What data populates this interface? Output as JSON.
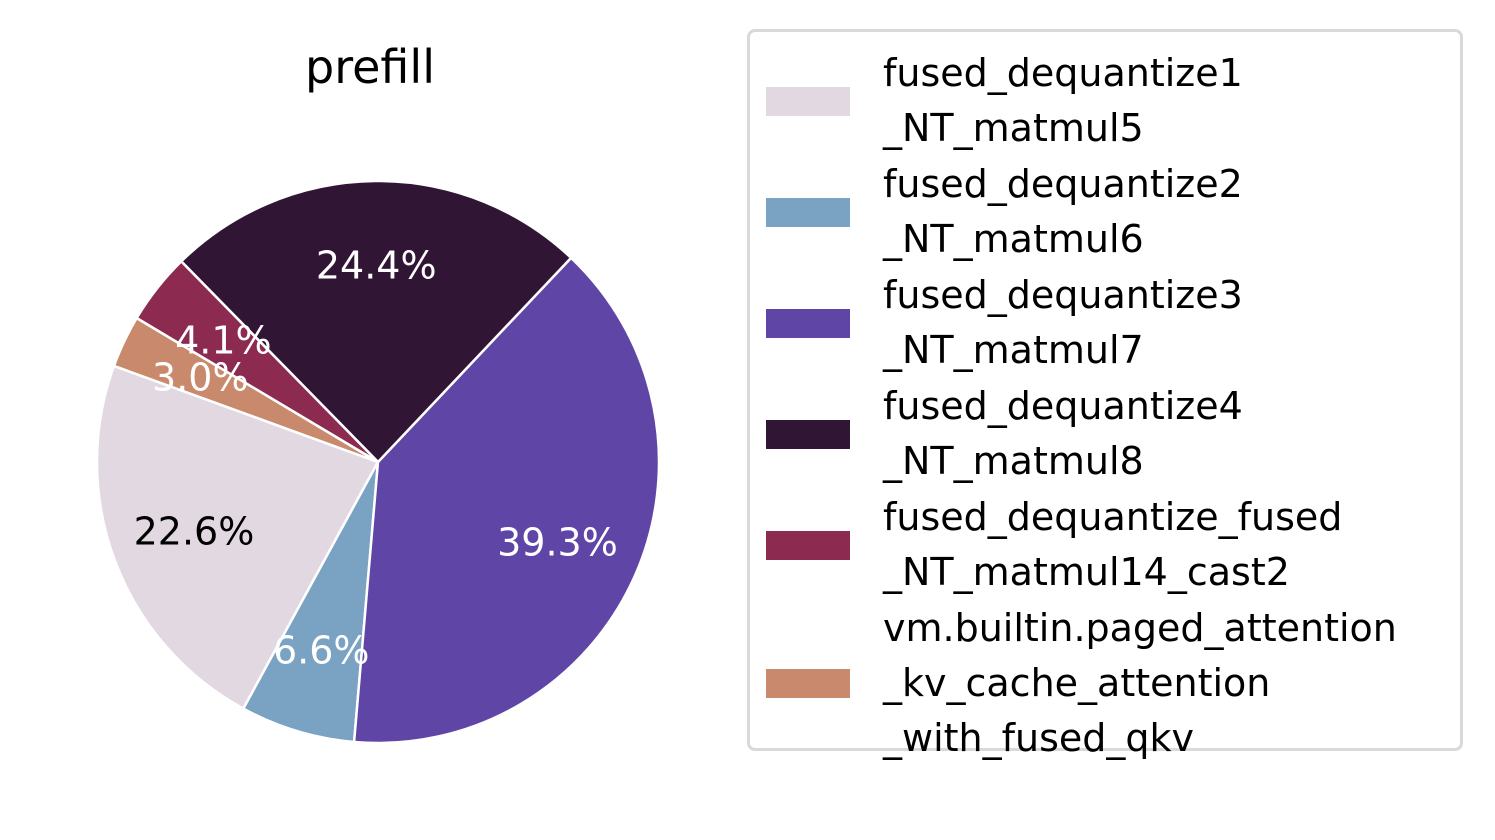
{
  "chart_data": {
    "type": "pie",
    "title": "prefill",
    "slices": [
      {
        "label": "fused_dequantize1\n_NT_matmul5",
        "value": 22.6,
        "display": "22.6%",
        "color": "#e2d8e2",
        "text_color": "#000000"
      },
      {
        "label": "fused_dequantize2\n_NT_matmul6",
        "value": 6.6,
        "display": "6.6%",
        "color": "#7aa2c3",
        "text_color": "#ffffff"
      },
      {
        "label": "fused_dequantize3\n_NT_matmul7",
        "value": 39.3,
        "display": "39.3%",
        "color": "#5f45a6",
        "text_color": "#ffffff"
      },
      {
        "label": "fused_dequantize4\n_NT_matmul8",
        "value": 24.4,
        "display": "24.4%",
        "color": "#311534",
        "text_color": "#ffffff"
      },
      {
        "label": "fused_dequantize_fused\n_NT_matmul14_cast2",
        "value": 4.1,
        "display": "4.1%",
        "color": "#8c2b4f",
        "text_color": "#ffffff"
      },
      {
        "label": "vm.builtin.paged_attention\n_kv_cache_attention\n_with_fused_qkv",
        "value": 3.0,
        "display": "3.0%",
        "color": "#c9896c",
        "text_color": "#ffffff"
      }
    ],
    "start_angle_deg": 160,
    "direction": "counterclockwise",
    "legend_position": "right"
  }
}
